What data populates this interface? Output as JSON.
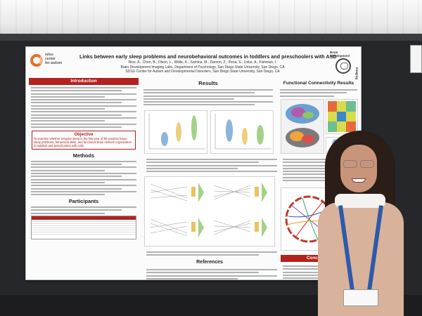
{
  "poster": {
    "logo_text": [
      "sdsu",
      "center",
      "for autism"
    ],
    "title": "Links between early sleep problems and neurobehavioral outcomes in toddlers and preschoolers with ASD",
    "authors": "Rios, A., Chen, B., Olson, L., Wilde, K., Samina, M., Damon, Z., Pena, S., Linke, A., Fishman, I.",
    "affiliations": [
      "Brain Development Imaging Labs, Department of Psychology, San Diego State University, San Diego, CA",
      "SDSU Center for Autism and Developmental Disorders, San Diego State University, San Diego, CA"
    ],
    "lab_logo_text": [
      "Brain",
      "Development",
      "Imaging",
      "Labs"
    ],
    "sections": {
      "introduction": "Introduction",
      "objective_head": "Objective",
      "objective_text": "To examine whether irregular sleep in the first year of life predicts future sleep problems, behavioral skills, and functional brain network organization in toddlers and preschoolers with ASD.",
      "methods": "Methods",
      "participants": "Participants",
      "results": "Results",
      "fc_results": "Functional Connectivity Results",
      "references": "References",
      "conclusions": "Conclusions"
    }
  }
}
